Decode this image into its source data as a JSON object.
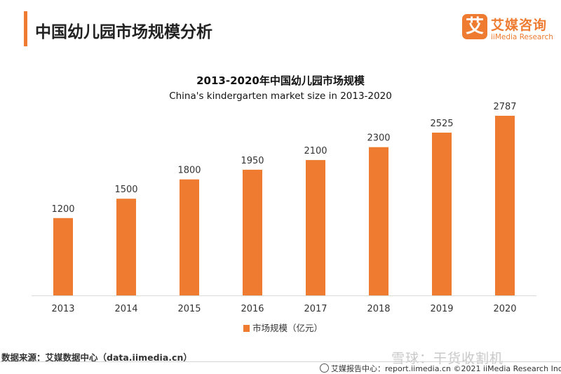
{
  "header": {
    "title": "中国幼儿园市场规模分析",
    "logo_mark": "艾",
    "logo_cn": "艾媒咨询",
    "logo_en": "iiMedia Research"
  },
  "chart_data": {
    "type": "bar",
    "title": "2013-2020年中国幼儿园市场规模",
    "subtitle": "China's kindergarten market size in 2013-2020",
    "categories": [
      "2013",
      "2014",
      "2015",
      "2016",
      "2017",
      "2018",
      "2019",
      "2020"
    ],
    "series": [
      {
        "name": "市场规模（亿元）",
        "values": [
          1200,
          1500,
          1800,
          1950,
          2100,
          2300,
          2525,
          2787
        ]
      }
    ],
    "xlabel": "",
    "ylabel": "",
    "ylim": [
      0,
      2950
    ],
    "grid": false,
    "show_y_axis": false,
    "data_labels": true,
    "legend_position": "bottom",
    "bar_color": "#ee7b30"
  },
  "footer": {
    "source": "数据来源：艾媒数据中心（data.iimedia.cn）",
    "watermark": "雪球：干货收割机",
    "copyright": "艾媒报告中心：report.iimedia.cn  ©2021  iiMedia Research  Inc"
  }
}
